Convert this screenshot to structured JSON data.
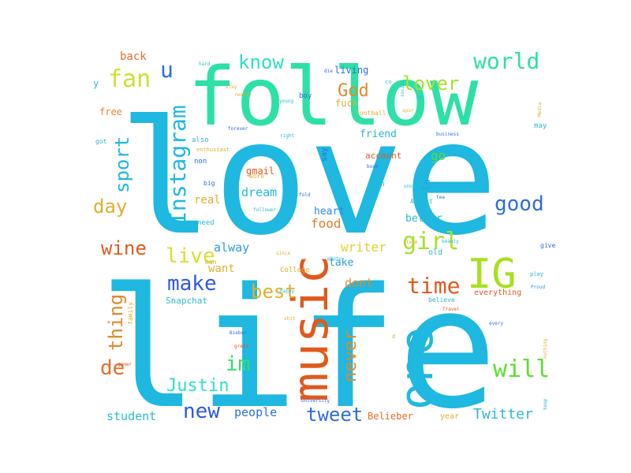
{
  "words": [
    {
      "text": "love",
      "color": "#1eb8e0"
    },
    {
      "text": "life",
      "color": "#1eb8e0"
    },
    {
      "text": "follow",
      "color": "#2de0a8"
    },
    {
      "text": "music",
      "color": "#e05a1e"
    },
    {
      "text": "one",
      "color": "#1eb8e0"
    },
    {
      "text": "IG",
      "color": "#a8e01e"
    },
    {
      "text": "Instagram",
      "color": "#1eb8e0"
    },
    {
      "text": "know",
      "color": "#2de0c0"
    },
    {
      "text": "world",
      "color": "#2de0a8"
    },
    {
      "text": "lover",
      "color": "#a8e02d"
    },
    {
      "text": "fan",
      "color": "#d0e02d"
    },
    {
      "text": "u",
      "color": "#2d6ee0"
    },
    {
      "text": "God",
      "color": "#e08a2d"
    },
    {
      "text": "girl",
      "color": "#a8e02d"
    },
    {
      "text": "good",
      "color": "#2d6ee0"
    },
    {
      "text": "sport",
      "color": "#1eb8e0"
    },
    {
      "text": "day",
      "color": "#e0b02d"
    },
    {
      "text": "live",
      "color": "#d8e02d"
    },
    {
      "text": "wine",
      "color": "#e05a1e"
    },
    {
      "text": "make",
      "color": "#2d5ae0"
    },
    {
      "text": "best",
      "color": "#e0b02d"
    },
    {
      "text": "time",
      "color": "#e05a1e"
    },
    {
      "text": "thing",
      "color": "#e08a2d"
    },
    {
      "text": "im",
      "color": "#2de06e"
    },
    {
      "text": "Justin",
      "color": "#2de0d0"
    },
    {
      "text": "de",
      "color": "#e0702d"
    },
    {
      "text": "new",
      "color": "#2d5ae0"
    },
    {
      "text": "never",
      "color": "#e08a2d"
    },
    {
      "text": "will",
      "color": "#5ae02d"
    },
    {
      "text": "tweet",
      "color": "#2d6ee0"
    },
    {
      "text": "Twitter",
      "color": "#2db8d0"
    },
    {
      "text": "student",
      "color": "#2db8d0"
    },
    {
      "text": "people",
      "color": "#2d6ee0"
    },
    {
      "text": "Belieber",
      "color": "#e0702d"
    },
    {
      "text": "dream",
      "color": "#1eb8e0"
    },
    {
      "text": "food",
      "color": "#e0802d"
    },
    {
      "text": "writer",
      "color": "#e0d02d"
    },
    {
      "text": "dont",
      "color": "#e08a2d"
    },
    {
      "text": "go",
      "color": "#5ae02d"
    },
    {
      "text": "heart",
      "color": "#2d8ae0"
    },
    {
      "text": "better",
      "color": "#2db8d0"
    },
    {
      "text": "alway",
      "color": "#2d9ee0"
    },
    {
      "text": "want",
      "color": "#e0b02d"
    },
    {
      "text": "real",
      "color": "#e0b02d"
    },
    {
      "text": "gmail",
      "color": "#e05a1e"
    },
    {
      "text": "friend",
      "color": "#2db8d0"
    },
    {
      "text": "account",
      "color": "#e05a1e"
    },
    {
      "text": "back",
      "color": "#e0702d"
    },
    {
      "text": "free",
      "color": "#e08a2d"
    },
    {
      "text": "living",
      "color": "#2d6ee0"
    },
    {
      "text": "fuck",
      "color": "#e0b02d"
    },
    {
      "text": "boy",
      "color": "#2d6ee0"
    },
    {
      "text": "Snapchat",
      "color": "#2db8d0"
    },
    {
      "text": "take",
      "color": "#2d9ee0"
    },
    {
      "text": "everything",
      "color": "#e05a1e"
    },
    {
      "text": "old",
      "color": "#2db8d0"
    },
    {
      "text": "year",
      "color": "#e0b02d"
    },
    {
      "text": "la",
      "color": "#2d9ee0"
    },
    {
      "text": "say",
      "color": "#2d6ee0"
    },
    {
      "text": "much",
      "color": "#2db8d0"
    },
    {
      "text": "non",
      "color": "#2d6ee0"
    },
    {
      "text": "also",
      "color": "#2db8d0"
    },
    {
      "text": "need",
      "color": "#2db8d0"
    },
    {
      "text": "man",
      "color": "#e0b02d"
    },
    {
      "text": "family",
      "color": "#e0b02d"
    },
    {
      "text": "College",
      "color": "#e0b02d"
    },
    {
      "text": "football",
      "color": "#e0b02d"
    },
    {
      "text": "may",
      "color": "#2db8d0"
    },
    {
      "text": "give",
      "color": "#2d6ee0"
    },
    {
      "text": "believe",
      "color": "#2db8d0"
    },
    {
      "text": "play",
      "color": "#2db8d0"
    },
    {
      "text": "Proud",
      "color": "#2d9ee0"
    },
    {
      "text": "work",
      "color": "#e0b02d"
    },
    {
      "text": "big",
      "color": "#2d6ee0"
    },
    {
      "text": "got",
      "color": "#2db8d0"
    },
    {
      "text": "Artist",
      "color": "#2db8d0"
    },
    {
      "text": "business",
      "color": "#2d6ee0"
    },
    {
      "text": "Travel",
      "color": "#e05a1e"
    },
    {
      "text": "follower",
      "color": "#2db8d0"
    },
    {
      "text": "forever",
      "color": "#2d6ee0"
    },
    {
      "text": "young",
      "color": "#2db8d0"
    },
    {
      "text": "really",
      "color": "#e0b02d"
    },
    {
      "text": "right",
      "color": "#2db8d0"
    },
    {
      "text": "enthusiast",
      "color": "#e0b02d"
    },
    {
      "text": "book",
      "color": "#2d6ee0"
    },
    {
      "text": "shit",
      "color": "#e0b02d"
    },
    {
      "text": "little",
      "color": "#2db8d0"
    },
    {
      "text": "Bieber",
      "color": "#2d6ee0"
    },
    {
      "text": "great",
      "color": "#e05a1e"
    },
    {
      "text": "hard",
      "color": "#2db8d0"
    },
    {
      "text": "every",
      "color": "#2d6ee0"
    },
    {
      "text": "gamer",
      "color": "#e05a1e"
    },
    {
      "text": "keep",
      "color": "#2db8d0"
    },
    {
      "text": "University",
      "color": "#2d6ee0"
    },
    {
      "text": "nothing",
      "color": "#e0b02d"
    },
    {
      "text": "happy",
      "color": "#2db8d0"
    },
    {
      "text": "social",
      "color": "#2db8d0"
    },
    {
      "text": "Media",
      "color": "#e0b02d"
    },
    {
      "text": "y",
      "color": "#2db8d0"
    },
    {
      "text": "die",
      "color": "#2d6ee0"
    },
    {
      "text": "co",
      "color": "#2db8d0"
    },
    {
      "text": "stay",
      "color": "#e0b02d"
    },
    {
      "text": "sp",
      "color": "#2db8d0"
    },
    {
      "text": "since",
      "color": "#e0b02d"
    },
    {
      "text": "art",
      "color": "#2db8d0"
    },
    {
      "text": "photo",
      "color": "#2db8d0"
    },
    {
      "text": "fold",
      "color": "#2d6ee0"
    },
    {
      "text": "love",
      "color": "#2db8d0"
    },
    {
      "text": "team",
      "color": "#e0b02d"
    },
    {
      "text": "tea",
      "color": "#2d6ee0"
    },
    {
      "text": "spur",
      "color": "#e0b02d"
    },
    {
      "text": "uno",
      "color": "#2db8d0"
    },
    {
      "text": "beauty",
      "color": "#2db8d0"
    },
    {
      "text": "d",
      "color": "#e0b02d"
    }
  ]
}
